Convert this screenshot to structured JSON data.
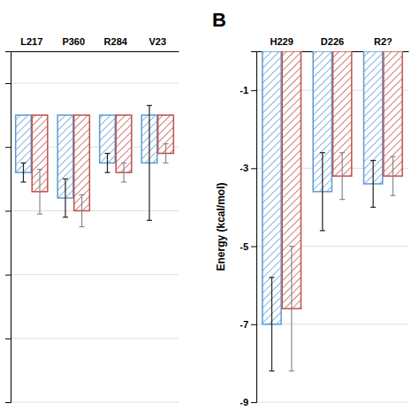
{
  "chart_data": [
    {
      "type": "bar",
      "categories": [
        "L217",
        "P360",
        "R284",
        "V23"
      ],
      "series": [
        {
          "color": "#5b9bd5",
          "values": [
            -1.8,
            -2.6,
            -1.5,
            -1.5
          ],
          "errors": [
            0.3,
            0.6,
            0.3,
            1.8
          ]
        },
        {
          "color": "#c0504d",
          "values": [
            -2.4,
            -3.0,
            -1.8,
            -1.2
          ],
          "errors": [
            0.7,
            0.5,
            0.3,
            0.3
          ]
        }
      ],
      "ylim": [
        -9,
        2
      ],
      "yticks": [
        -9,
        -7,
        -5,
        -3,
        -1,
        1
      ],
      "grid": true,
      "tick_labels": "x"
    },
    {
      "type": "bar",
      "title": "B",
      "ylabel": "Energy (kcal/mol)",
      "categories": [
        "H229",
        "D226",
        "R2?"
      ],
      "series": [
        {
          "color": "#5b9bd5",
          "values": [
            -7.0,
            -3.6,
            -3.4
          ],
          "errors": [
            1.2,
            1.0,
            0.6
          ]
        },
        {
          "color": "#c0504d",
          "values": [
            -6.6,
            -3.2,
            -3.2
          ],
          "errors": [
            1.6,
            0.6,
            0.5
          ]
        }
      ],
      "ylim": [
        -9,
        0
      ],
      "yticks": [
        -9,
        -7,
        -5,
        -3,
        -1
      ],
      "grid": true
    }
  ]
}
